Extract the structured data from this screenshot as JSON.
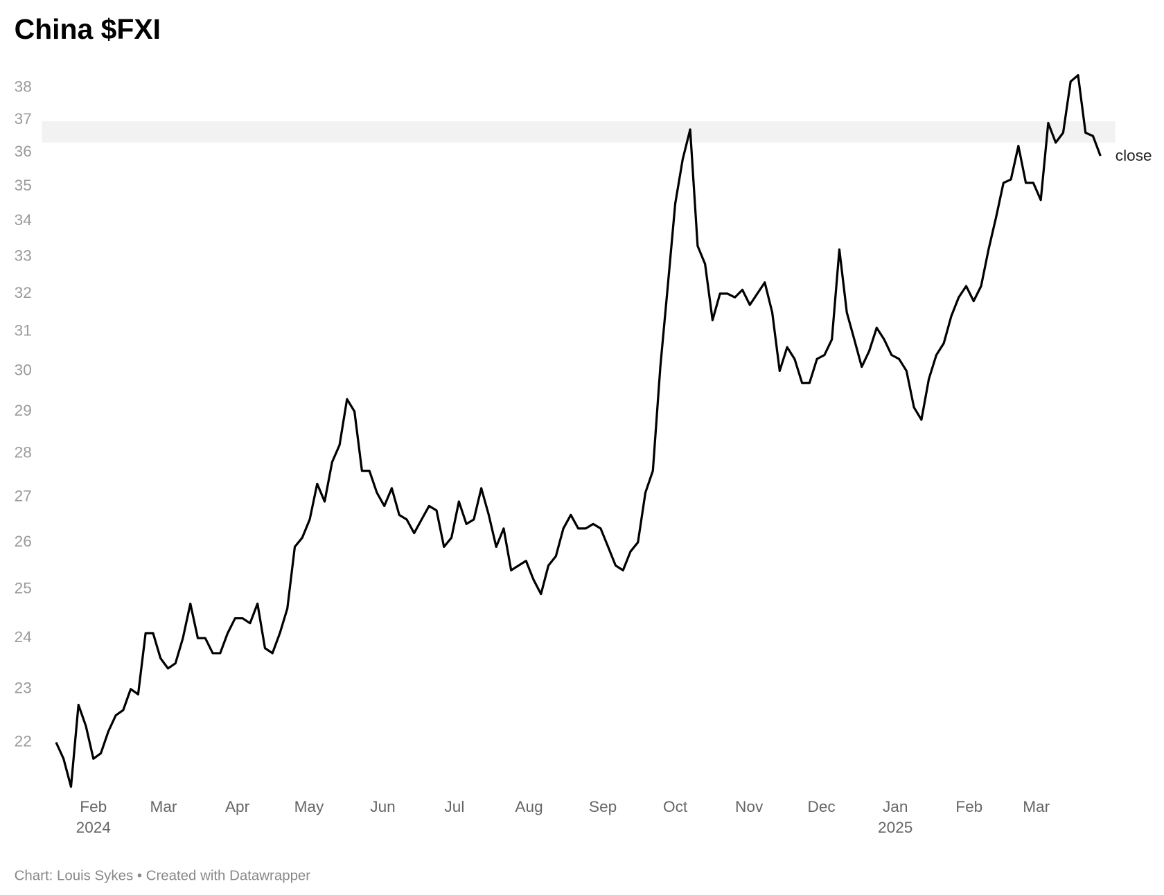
{
  "chart_data": {
    "type": "line",
    "title": "China $FXI",
    "source": "Chart: Louis Sykes • Created with Datawrapper",
    "color": "#000000",
    "log_scale": true,
    "values": [
      22.0,
      21.7,
      21.2,
      22.7,
      22.3,
      21.7,
      21.8,
      22.2,
      22.5,
      22.6,
      23.0,
      22.9,
      24.1,
      24.1,
      23.6,
      23.4,
      23.5,
      24.0,
      24.7,
      24.0,
      24.0,
      23.7,
      23.7,
      24.1,
      24.4,
      24.4,
      24.3,
      24.7,
      23.8,
      23.7,
      24.1,
      24.6,
      25.9,
      26.1,
      26.5,
      27.3,
      26.9,
      27.8,
      28.2,
      29.3,
      29.0,
      27.6,
      27.6,
      27.1,
      26.8,
      27.2,
      26.6,
      26.5,
      26.2,
      26.5,
      26.8,
      26.7,
      25.9,
      26.1,
      26.9,
      26.4,
      26.5,
      27.2,
      26.6,
      25.9,
      26.3,
      25.4,
      25.5,
      25.6,
      25.2,
      24.9,
      25.5,
      25.7,
      26.3,
      26.6,
      26.3,
      26.3,
      26.4,
      26.3,
      25.9,
      25.5,
      25.4,
      25.8,
      26.0,
      27.1,
      27.6,
      30.1,
      32.2,
      34.5,
      35.8,
      36.7,
      33.3,
      32.8,
      31.3,
      32.0,
      32.0,
      31.9,
      32.1,
      31.7,
      32.0,
      32.3,
      31.5,
      30.0,
      30.6,
      30.3,
      29.7,
      29.7,
      30.3,
      30.4,
      30.8,
      33.2,
      31.5,
      30.8,
      30.1,
      30.5,
      31.1,
      30.8,
      30.4,
      30.3,
      30.0,
      29.1,
      28.8,
      29.8,
      30.4,
      30.7,
      31.4,
      31.9,
      32.2,
      31.8,
      32.2,
      33.2,
      34.1,
      35.1,
      35.2,
      36.2,
      35.1,
      35.1,
      34.6,
      36.9,
      36.3,
      36.6,
      38.2,
      38.4,
      36.6,
      36.5,
      35.9
    ],
    "xlim": [
      0,
      140
    ],
    "xticks": [
      {
        "value": 5,
        "label": "Feb"
      },
      {
        "value": 14.4,
        "label": "Mar"
      },
      {
        "value": 24.3,
        "label": "Apr"
      },
      {
        "value": 33.9,
        "label": "May"
      },
      {
        "value": 43.8,
        "label": "Jun"
      },
      {
        "value": 53.4,
        "label": "Jul"
      },
      {
        "value": 63.4,
        "label": "Aug"
      },
      {
        "value": 73.3,
        "label": "Sep"
      },
      {
        "value": 83,
        "label": "Oct"
      },
      {
        "value": 92.9,
        "label": "Nov"
      },
      {
        "value": 102.6,
        "label": "Dec"
      },
      {
        "value": 112.5,
        "label": "Jan"
      },
      {
        "value": 122.4,
        "label": "Feb"
      },
      {
        "value": 131.4,
        "label": "Mar"
      }
    ],
    "year_labels": [
      {
        "value": 5,
        "label": "2024"
      },
      {
        "value": 112.5,
        "label": "2025"
      }
    ],
    "ylim": [
      21,
      39
    ],
    "yticks": [
      22,
      23,
      24,
      25,
      26,
      27,
      28,
      29,
      30,
      31,
      32,
      33,
      34,
      35,
      36,
      37,
      38
    ],
    "band": [
      36.3,
      36.95
    ],
    "band_color": "#f2f2f2",
    "end_label": "close"
  }
}
